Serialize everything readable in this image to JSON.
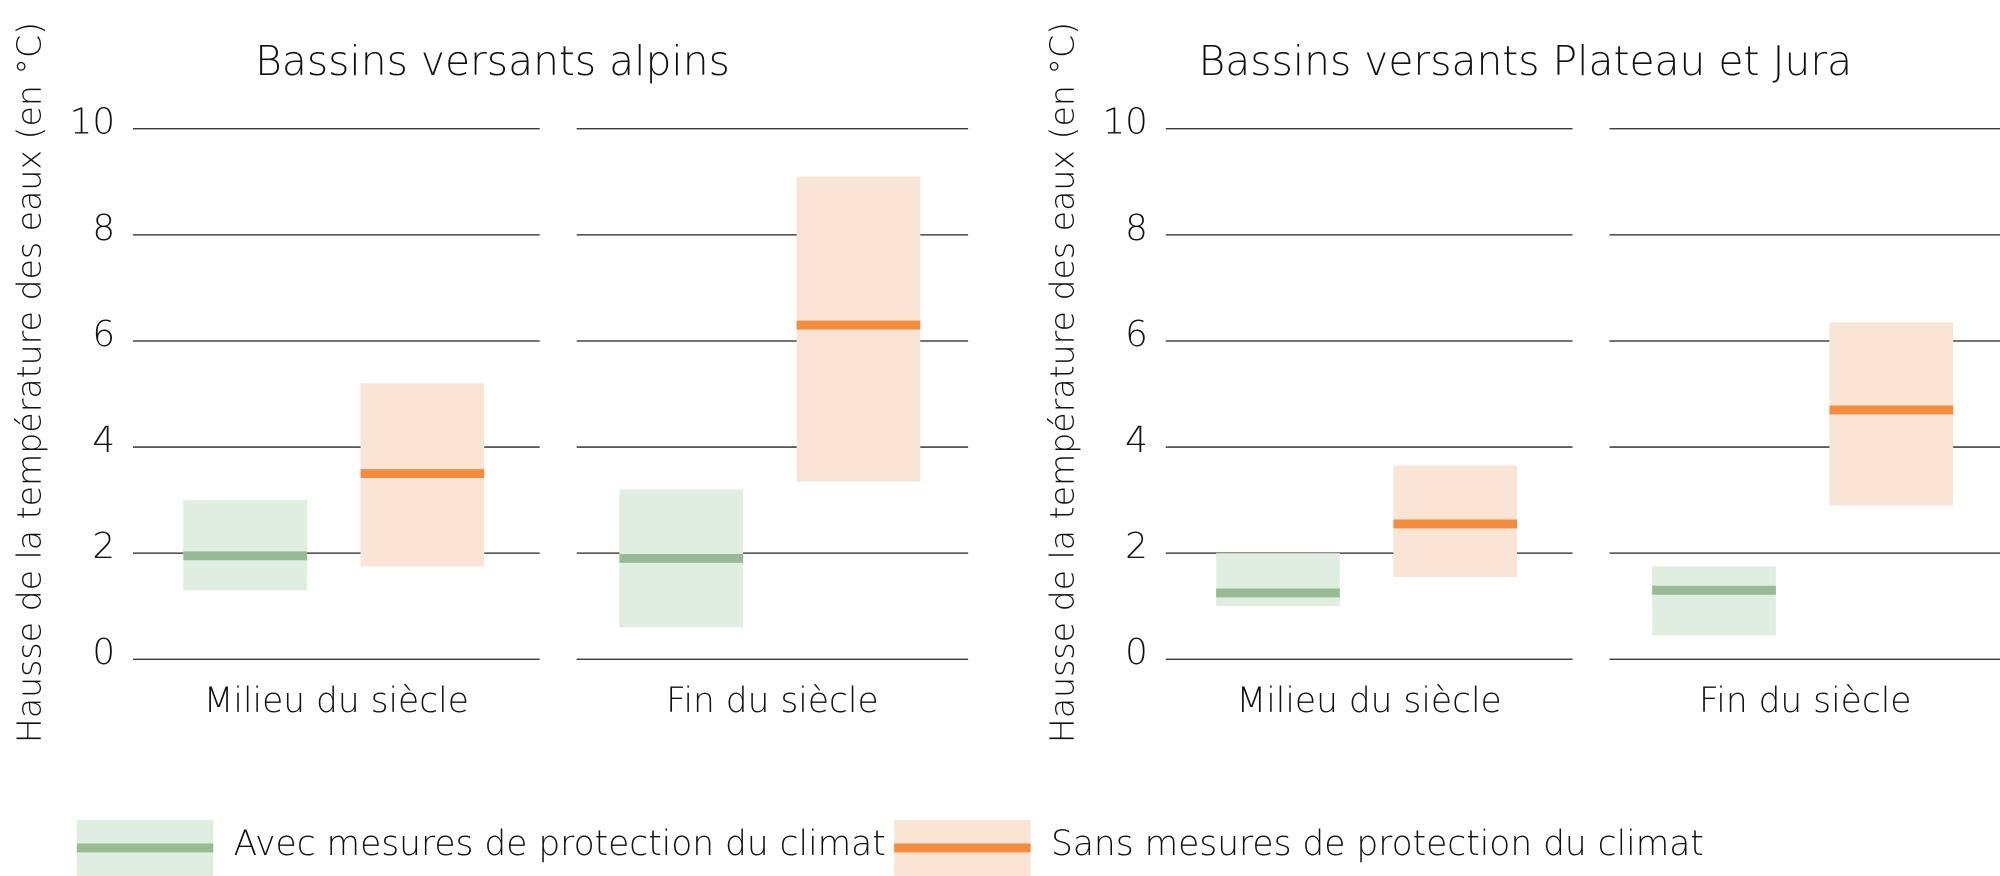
{
  "legend": [
    {
      "name": "Avec mesures de protection du climat",
      "band_color": "#dfeee0",
      "line_color": "#97bb93"
    },
    {
      "name": "Sans mesures de protection du climat",
      "band_color": "#f9e4d5",
      "line_color": "#f58b3c"
    }
  ],
  "chart_data": [
    {
      "type": "range",
      "title": "Bassins versants alpins",
      "y_label": "Hausse de la température des eaux (en °C)",
      "categories": [
        "Milieu du siècle",
        "Fin du siècle"
      ],
      "ylim": [
        0,
        10
      ],
      "yticks": [
        0,
        2,
        4,
        6,
        8,
        10
      ],
      "grid": true,
      "series": [
        {
          "low": [
            1.3,
            0.6
          ],
          "median": [
            1.95,
            1.9
          ],
          "high": [
            3.0,
            3.2
          ]
        },
        {
          "low": [
            1.75,
            3.35
          ],
          "median": [
            3.5,
            6.3
          ],
          "high": [
            5.2,
            9.1
          ]
        }
      ]
    },
    {
      "type": "range",
      "title": "Bassins versants Plateau et Jura",
      "y_label": "Hausse de la température des eaux (en °C)",
      "categories": [
        "Milieu du siècle",
        "Fin du siècle"
      ],
      "ylim": [
        0,
        10
      ],
      "yticks": [
        0,
        2,
        4,
        6,
        8,
        10
      ],
      "grid": true,
      "series": [
        {
          "low": [
            1.0,
            0.45
          ],
          "median": [
            1.25,
            1.3
          ],
          "high": [
            2.0,
            1.75
          ]
        },
        {
          "low": [
            1.55,
            2.9
          ],
          "median": [
            2.55,
            4.7
          ],
          "high": [
            3.65,
            6.35
          ]
        }
      ]
    }
  ]
}
